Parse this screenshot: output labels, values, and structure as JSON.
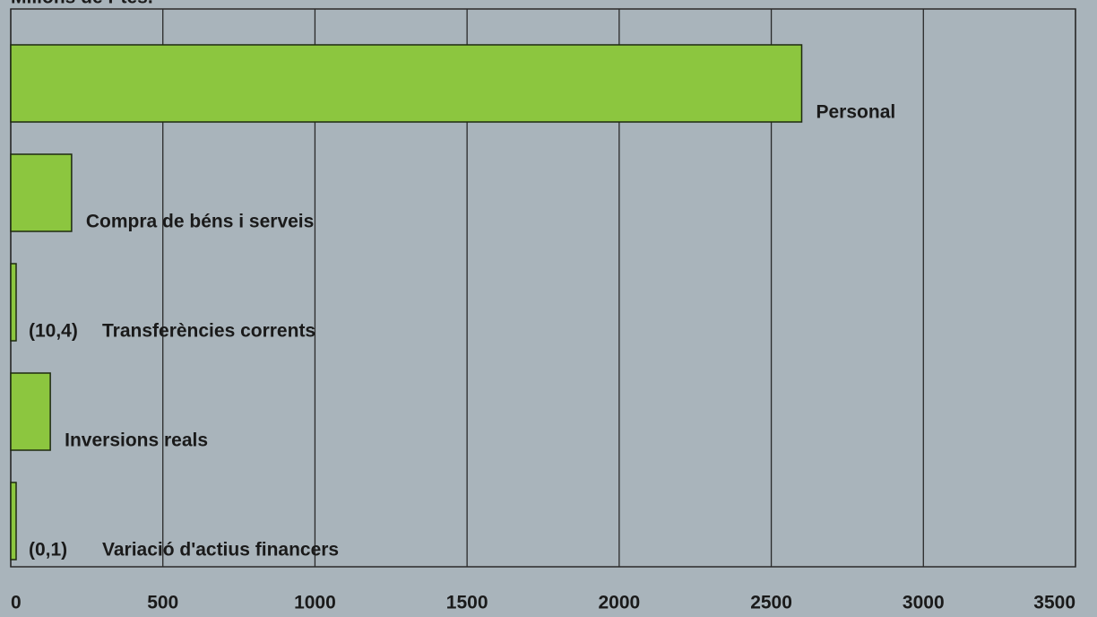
{
  "chart_data": {
    "type": "barh",
    "y_label": "Milions de Ptes.",
    "categories": [
      "Personal",
      "Compra de béns i serveis",
      "Transferències corrents",
      "Inversions reals",
      "Variació d'actius financers"
    ],
    "values": [
      2600,
      200,
      10.4,
      130,
      0.1
    ],
    "value_labels": [
      null,
      null,
      "(10,4)",
      null,
      "(0,1)"
    ],
    "color": "#8cc63f",
    "xlim": [
      0,
      3500
    ],
    "xticks": [
      0,
      500,
      1000,
      1500,
      2000,
      2500,
      3000,
      3500
    ],
    "grid": true
  }
}
